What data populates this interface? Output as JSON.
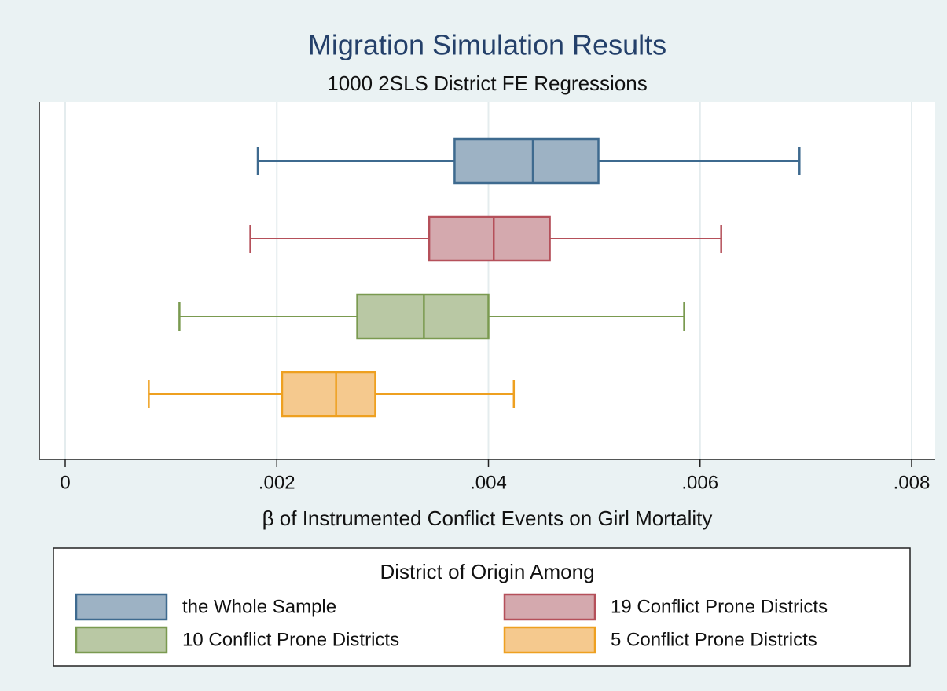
{
  "chart_data": {
    "type": "box",
    "title": "Migration Simulation Results",
    "subtitle": "1000 2SLS District FE Regressions",
    "x_label": "β of Instrumented Conflict Events on Girl Mortality",
    "legend_title": "District of Origin Among",
    "xlim": [
      0,
      0.008
    ],
    "xticks": [
      0,
      {
        "value": 0.002,
        "label": ".002"
      },
      {
        "value": 0.004,
        "label": ".004"
      },
      {
        "value": 0.006,
        "label": ".006"
      },
      {
        "value": 0.008,
        "label": ".008"
      }
    ],
    "grid": true,
    "series": [
      {
        "name": "the Whole Sample",
        "color": "#3e6a8f",
        "fill": "#9db2c4",
        "min": 0.00182,
        "q1": 0.00368,
        "median": 0.00442,
        "q3": 0.00504,
        "max": 0.00694
      },
      {
        "name": "19 Conflict Prone Districts",
        "color": "#b5505a",
        "fill": "#d4a9ae",
        "min": 0.00175,
        "q1": 0.00344,
        "median": 0.00405,
        "q3": 0.00458,
        "max": 0.0062
      },
      {
        "name": "10 Conflict Prone Districts",
        "color": "#7a9a50",
        "fill": "#b9c8a4",
        "min": 0.00108,
        "q1": 0.00276,
        "median": 0.00339,
        "q3": 0.004,
        "max": 0.00585
      },
      {
        "name": "5 Conflict Prone Districts",
        "color": "#eea020",
        "fill": "#f5c98e",
        "min": 0.00079,
        "q1": 0.00205,
        "median": 0.00256,
        "q3": 0.00293,
        "max": 0.00424
      }
    ]
  }
}
